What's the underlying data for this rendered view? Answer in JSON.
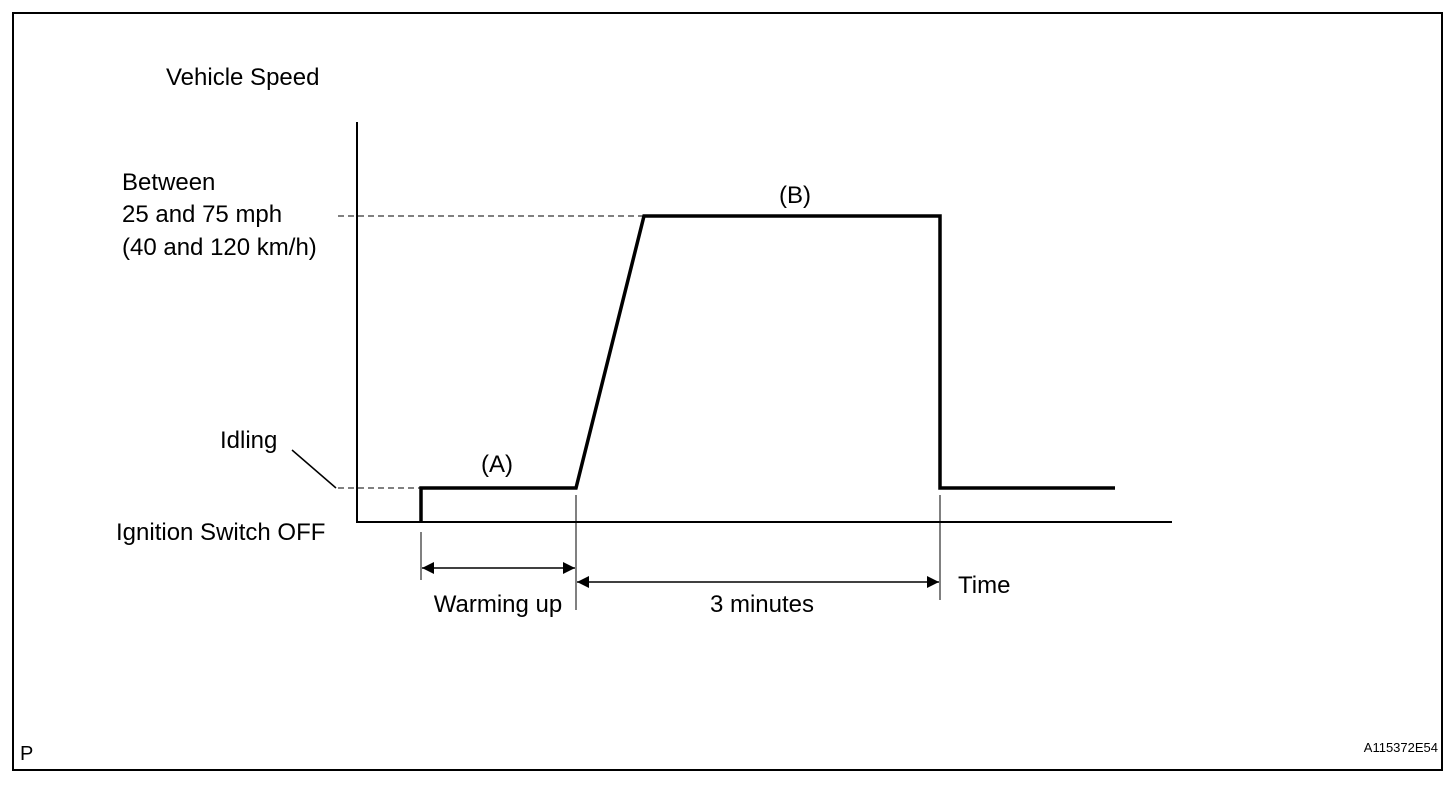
{
  "diagram": {
    "y_axis_label": "Vehicle Speed",
    "x_axis_label": "Time",
    "speed_label_line1": "Between",
    "speed_label_line2": "25 and 75 mph",
    "speed_label_line3": "(40 and 120 km/h)",
    "idling_label": "Idling",
    "ignition_off_label": "Ignition Switch OFF",
    "phase_a_label": "(A)",
    "phase_b_label": "(B)",
    "warming_up_label": "Warming up",
    "duration_label": "3 minutes",
    "corner_mark": "P",
    "figure_code": "A115372E54"
  },
  "colors": {
    "line": "#000000",
    "background": "#ffffff"
  }
}
